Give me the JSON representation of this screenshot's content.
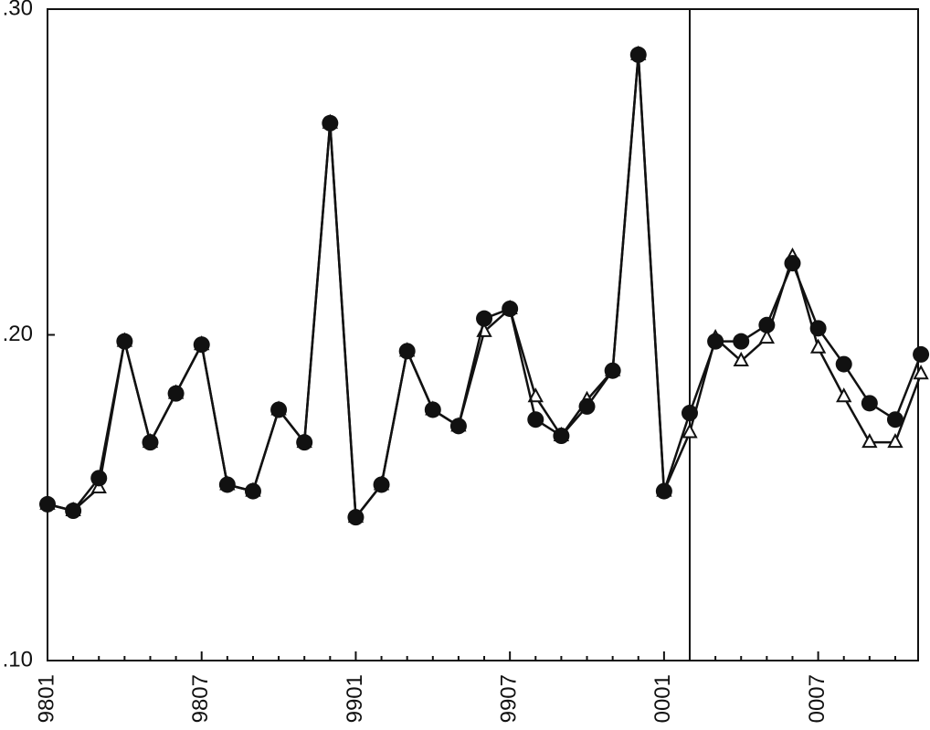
{
  "chart_data": {
    "type": "line",
    "categories": [
      "9801",
      null,
      null,
      null,
      null,
      null,
      "9807",
      null,
      null,
      null,
      null,
      null,
      "9901",
      null,
      null,
      null,
      null,
      null,
      "9907",
      null,
      null,
      null,
      null,
      null,
      "0001",
      null,
      null,
      null,
      null,
      null,
      "0007",
      null,
      null,
      null,
      null
    ],
    "series": [
      {
        "color": "#111111",
        "marker": "circle",
        "values": [
          0.148,
          0.146,
          0.156,
          0.198,
          0.167,
          0.182,
          0.197,
          0.154,
          0.152,
          0.177,
          0.167,
          0.265,
          0.144,
          0.154,
          0.195,
          0.177,
          0.172,
          0.205,
          0.208,
          0.174,
          0.169,
          0.178,
          0.189,
          0.286,
          0.152,
          0.176,
          0.198,
          0.198,
          0.203,
          0.222,
          0.202,
          0.191,
          0.179,
          0.174,
          0.194
        ]
      },
      {
        "color": "#111111",
        "marker": "triangle",
        "values": [
          0.148,
          0.146,
          0.153,
          0.198,
          0.167,
          0.182,
          0.197,
          0.154,
          0.152,
          0.177,
          0.167,
          0.265,
          0.144,
          0.154,
          0.195,
          0.177,
          0.172,
          0.201,
          0.208,
          0.181,
          0.169,
          0.18,
          0.189,
          0.286,
          0.152,
          0.17,
          0.199,
          0.192,
          0.199,
          0.224,
          0.196,
          0.181,
          0.167,
          0.167,
          0.188
        ]
      }
    ],
    "ylim": [
      0.1,
      0.3
    ],
    "yticks": [
      {
        "value": 0.1,
        "label": ".10"
      },
      {
        "value": 0.2,
        "label": ".20"
      },
      {
        "value": 0.3,
        "label": ".30"
      }
    ]
  }
}
